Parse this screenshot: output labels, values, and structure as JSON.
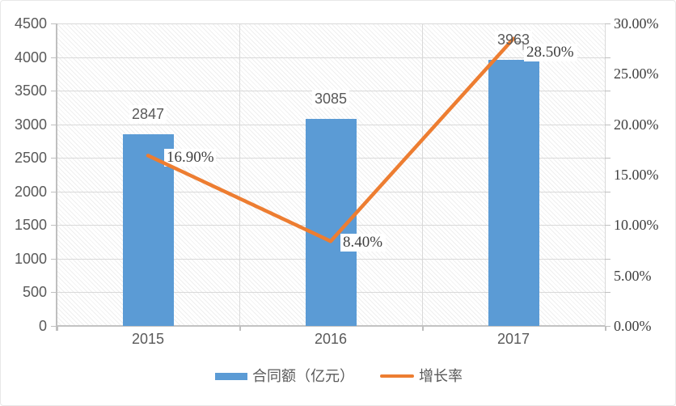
{
  "chart_data": {
    "type": "bar",
    "subtype": "combo-bar-line",
    "title": "",
    "categories": [
      "2015",
      "2016",
      "2017"
    ],
    "series": [
      {
        "name": "合同额（亿元）",
        "chart_type": "bar",
        "axis": "left",
        "color": "#5B9BD5",
        "values": [
          2847,
          3085,
          3963
        ],
        "data_labels": [
          "2847",
          "3085",
          "3963"
        ]
      },
      {
        "name": "增长率",
        "chart_type": "line",
        "axis": "right",
        "color": "#ED7D31",
        "values": [
          16.9,
          8.4,
          28.5
        ],
        "data_labels": [
          "16.90%",
          "8.40%",
          "28.50%"
        ]
      }
    ],
    "left_axis": {
      "min": 0,
      "max": 4500,
      "step": 500,
      "tick_labels": [
        "0",
        "500",
        "1000",
        "1500",
        "2000",
        "2500",
        "3000",
        "3500",
        "4000",
        "4500"
      ]
    },
    "right_axis": {
      "min": 0,
      "max": 30,
      "step": 5,
      "tick_labels": [
        "0.00%",
        "5.00%",
        "10.00%",
        "15.00%",
        "20.00%",
        "25.00%",
        "30.00%"
      ]
    },
    "grid": true,
    "plot_background": "diagonal-hatch",
    "legend_position": "bottom"
  },
  "legend": {
    "items": [
      {
        "label": "合同额（亿元）",
        "color": "#5B9BD5",
        "marker": "bar"
      },
      {
        "label": "增长率",
        "color": "#ED7D31",
        "marker": "line"
      }
    ]
  },
  "colors": {
    "bar": "#5B9BD5",
    "line": "#ED7D31",
    "gridline": "#D9D9D9",
    "axis_line": "#BFBFBF",
    "axis_text": "#595959",
    "serif_text": "#404040",
    "label_background": "#FFFFFF",
    "leader_line": "#A6A6A6"
  }
}
